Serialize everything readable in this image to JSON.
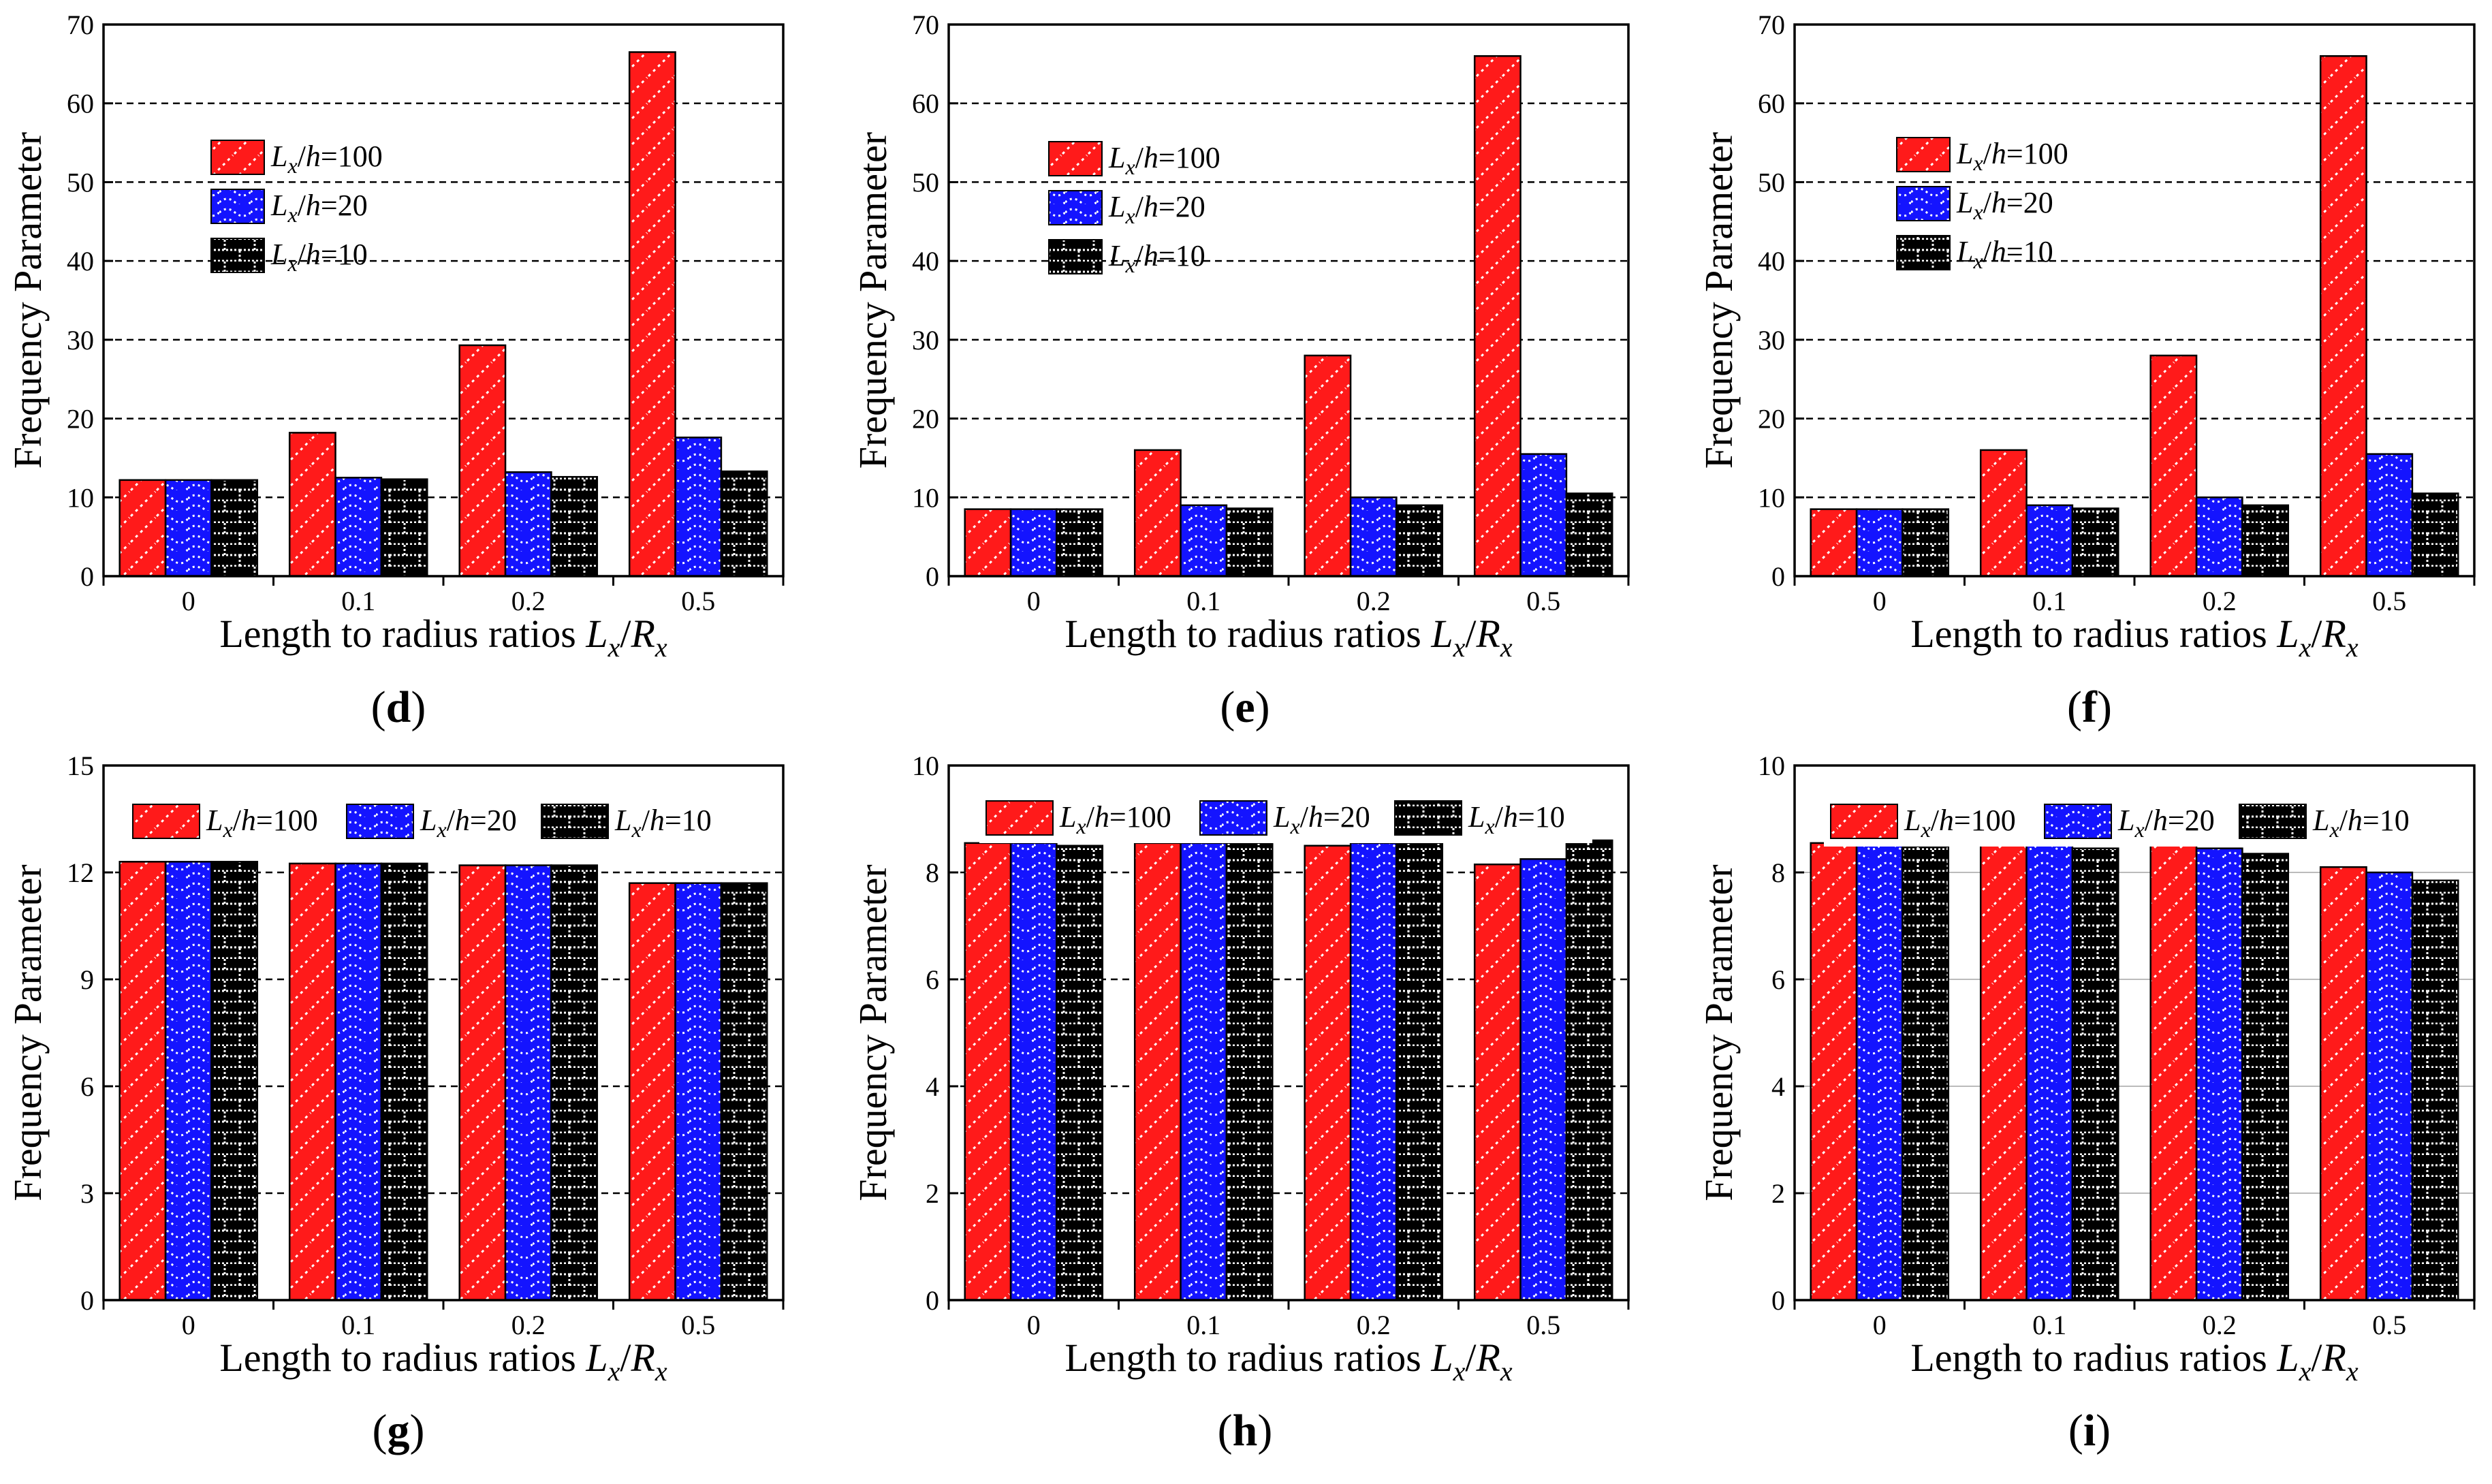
{
  "figure": {
    "legend_prefix_L": "L",
    "legend_sub_x": "x",
    "legend_slash": "/",
    "legend_h": "h",
    "legend_equals": "=",
    "xlabel_text": "Length to radius ratios ",
    "xlabel_L": "L",
    "xlabel_x": "x",
    "xlabel_slash": "/",
    "xlabel_R": "R",
    "xlabel_sub": "x"
  },
  "colors": {
    "series_1": "#ff1a1a",
    "series_2": "#1414ff",
    "series_3": "#000000",
    "grid": "#000000",
    "grid_light": "#bbbbbb"
  },
  "chart_data": [
    {
      "id": "d",
      "type": "bar",
      "panel_label": "d",
      "categories": [
        "0",
        "0.1",
        "0.2",
        "0.5"
      ],
      "series": [
        {
          "name": "100",
          "values": [
            12.2,
            18.2,
            29.3,
            66.5
          ]
        },
        {
          "name": "20",
          "values": [
            12.2,
            12.5,
            13.2,
            17.6
          ]
        },
        {
          "name": "10",
          "values": [
            12.2,
            12.3,
            12.6,
            13.3
          ]
        }
      ],
      "ylim": [
        0,
        70
      ],
      "yticks": [
        "0",
        "10",
        "20",
        "30",
        "40",
        "50",
        "60",
        "70"
      ],
      "xlabel": "Length to radius ratios Lx/Rx",
      "ylabel": "Frequency Parameter",
      "legend": "vertical",
      "grid": "dashed"
    },
    {
      "id": "e",
      "type": "bar",
      "panel_label": "e",
      "categories": [
        "0",
        "0.1",
        "0.2",
        "0.5"
      ],
      "series": [
        {
          "name": "100",
          "values": [
            8.5,
            16.0,
            28.0,
            66.0
          ]
        },
        {
          "name": "20",
          "values": [
            8.5,
            9.0,
            10.0,
            15.5
          ]
        },
        {
          "name": "10",
          "values": [
            8.5,
            8.6,
            9.0,
            10.5
          ]
        }
      ],
      "ylim": [
        0,
        70
      ],
      "yticks": [
        "0",
        "10",
        "20",
        "30",
        "40",
        "50",
        "60",
        "70"
      ],
      "xlabel": "Length to radius ratios Lx/Rx",
      "ylabel": "Frequency Parameter",
      "legend": "vertical",
      "grid": "dashed"
    },
    {
      "id": "f",
      "type": "bar",
      "panel_label": "f",
      "categories": [
        "0",
        "0.1",
        "0.2",
        "0.5"
      ],
      "series": [
        {
          "name": "100",
          "values": [
            8.5,
            16.0,
            28.0,
            66.0
          ]
        },
        {
          "name": "20",
          "values": [
            8.5,
            9.0,
            10.0,
            15.5
          ]
        },
        {
          "name": "10",
          "values": [
            8.5,
            8.6,
            9.0,
            10.5
          ]
        }
      ],
      "ylim": [
        0,
        70
      ],
      "yticks": [
        "0",
        "10",
        "20",
        "30",
        "40",
        "50",
        "60",
        "70"
      ],
      "xlabel": "Length to radius ratios Lx/Rx",
      "ylabel": "Frequency Parameter",
      "legend": "vertical",
      "grid": "dashed"
    },
    {
      "id": "g",
      "type": "bar",
      "panel_label": "g",
      "categories": [
        "0",
        "0.1",
        "0.2",
        "0.5"
      ],
      "series": [
        {
          "name": "100",
          "values": [
            12.3,
            12.25,
            12.2,
            11.7
          ]
        },
        {
          "name": "20",
          "values": [
            12.3,
            12.25,
            12.2,
            11.7
          ]
        },
        {
          "name": "10",
          "values": [
            12.3,
            12.25,
            12.2,
            11.7
          ]
        }
      ],
      "ylim": [
        0,
        15
      ],
      "yticks": [
        "0",
        "3",
        "6",
        "9",
        "12",
        "15"
      ],
      "xlabel": "Length to radius ratios Lx/Rx",
      "ylabel": "Frequency Parameter",
      "legend": "horizontal",
      "grid": "dashed"
    },
    {
      "id": "h",
      "type": "bar",
      "panel_label": "h",
      "categories": [
        "0",
        "0.1",
        "0.2",
        "0.5"
      ],
      "series": [
        {
          "name": "100",
          "values": [
            8.55,
            8.55,
            8.5,
            8.15
          ]
        },
        {
          "name": "20",
          "values": [
            8.55,
            8.55,
            8.55,
            8.25
          ]
        },
        {
          "name": "10",
          "values": [
            8.5,
            8.55,
            8.55,
            8.6
          ]
        }
      ],
      "ylim": [
        0,
        10
      ],
      "yticks": [
        "0",
        "2",
        "4",
        "6",
        "8",
        "10"
      ],
      "xlabel": "Length to radius ratios Lx/Rx",
      "ylabel": "Frequency Parameter",
      "legend": "horizontal",
      "grid": "dashed"
    },
    {
      "id": "i",
      "type": "bar",
      "panel_label": "i",
      "categories": [
        "0",
        "0.1",
        "0.2",
        "0.5"
      ],
      "series": [
        {
          "name": "100",
          "values": [
            8.55,
            8.55,
            8.5,
            8.1
          ]
        },
        {
          "name": "20",
          "values": [
            8.55,
            8.5,
            8.45,
            8.0
          ]
        },
        {
          "name": "10",
          "values": [
            8.5,
            8.45,
            8.35,
            7.85
          ]
        }
      ],
      "ylim": [
        0,
        10
      ],
      "yticks": [
        "0",
        "2",
        "4",
        "6",
        "8",
        "10"
      ],
      "xlabel": "Length to radius ratios Lx/Rx",
      "ylabel": "Frequency Parameter",
      "legend": "horizontal",
      "grid": "solid-light"
    }
  ]
}
